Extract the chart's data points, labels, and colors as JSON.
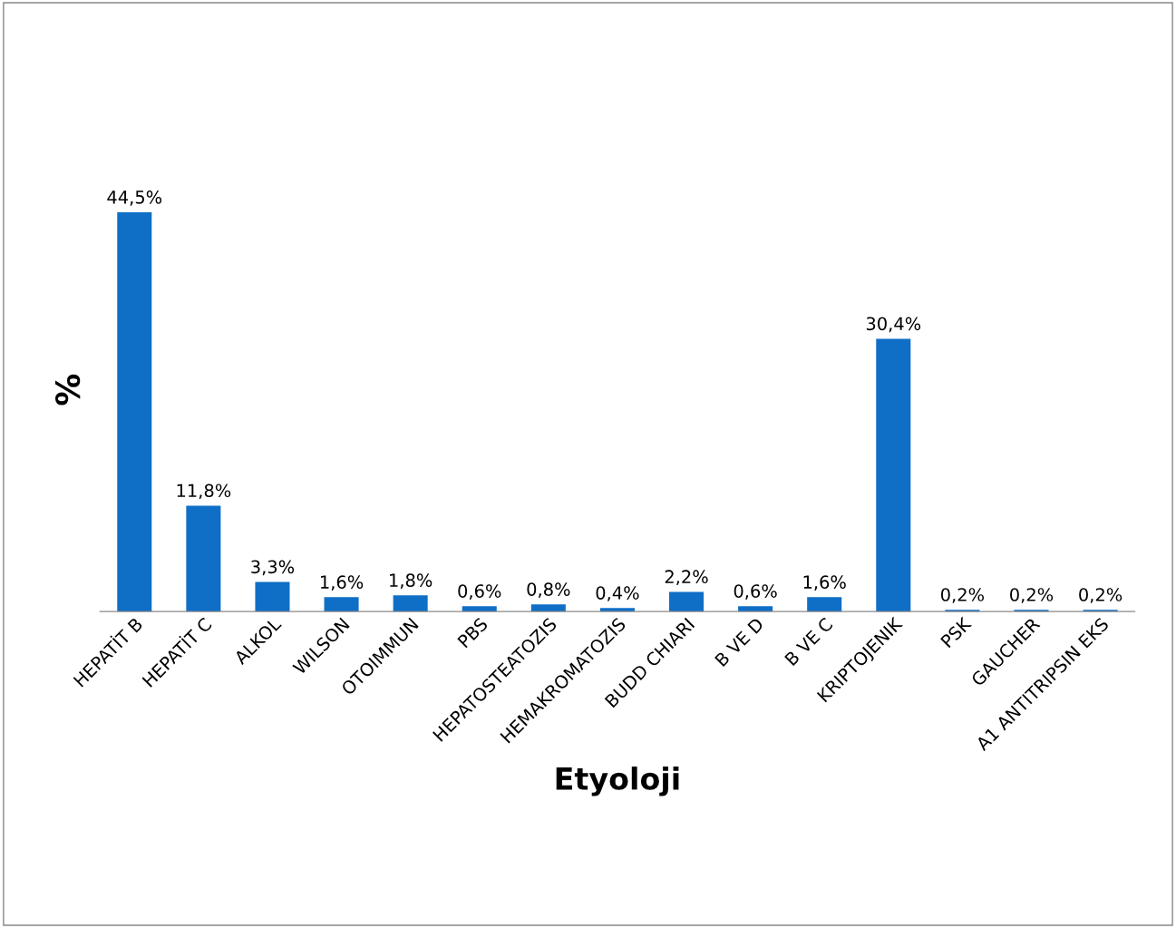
{
  "chart_data": {
    "type": "bar",
    "xlabel": "Etyoloji",
    "ylabel": "%",
    "categories": [
      "HEPATİT B",
      "HEPATİT C",
      "ALKOL",
      "WILSON",
      "OTOIMMUN",
      "PBS",
      "HEPATOSTEATOZIS",
      "HEMAKROMATOZIS",
      "BUDD CHIARI",
      "B VE D",
      "B VE C",
      "KRIPTOJENIK",
      "PSK",
      "GAUCHER",
      "A1 ANTITRIPSIN EKS"
    ],
    "values": [
      44.5,
      11.8,
      3.3,
      1.6,
      1.8,
      0.6,
      0.8,
      0.4,
      2.2,
      0.6,
      1.6,
      30.4,
      0.2,
      0.2,
      0.2
    ],
    "value_labels": [
      "44,5%",
      "11,8%",
      "3,3%",
      "1,6%",
      "1,8%",
      "0,6%",
      "0,8%",
      "0,4%",
      "2,2%",
      "0,6%",
      "1,6%",
      "30,4%",
      "0,2%",
      "0,2%",
      "0,2%"
    ],
    "color": "#0f6fc6",
    "grid": false,
    "legend": false
  }
}
